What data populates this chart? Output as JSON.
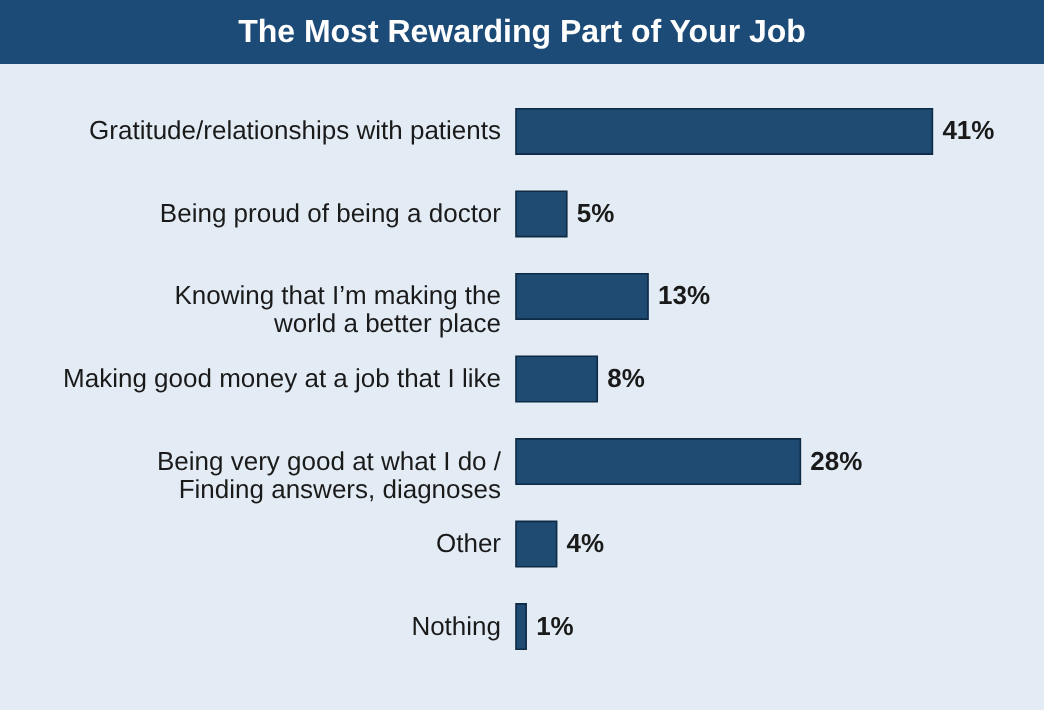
{
  "chart_data": {
    "type": "bar",
    "orientation": "horizontal",
    "title": "The Most Rewarding Part of Your Job",
    "categories": [
      "Gratitude/relationships with patients",
      "Being proud of being a doctor",
      "Knowing that I’m making the\nworld a better place",
      "Making good money at a job that I like",
      "Being very good at what I do /\nFinding answers, diagnoses",
      "Other",
      "Nothing"
    ],
    "values": [
      41,
      5,
      13,
      8,
      28,
      4,
      1
    ],
    "value_labels": [
      "41%",
      "5%",
      "13%",
      "8%",
      "28%",
      "4%",
      "1%"
    ],
    "color": "#1f4b73"
  }
}
